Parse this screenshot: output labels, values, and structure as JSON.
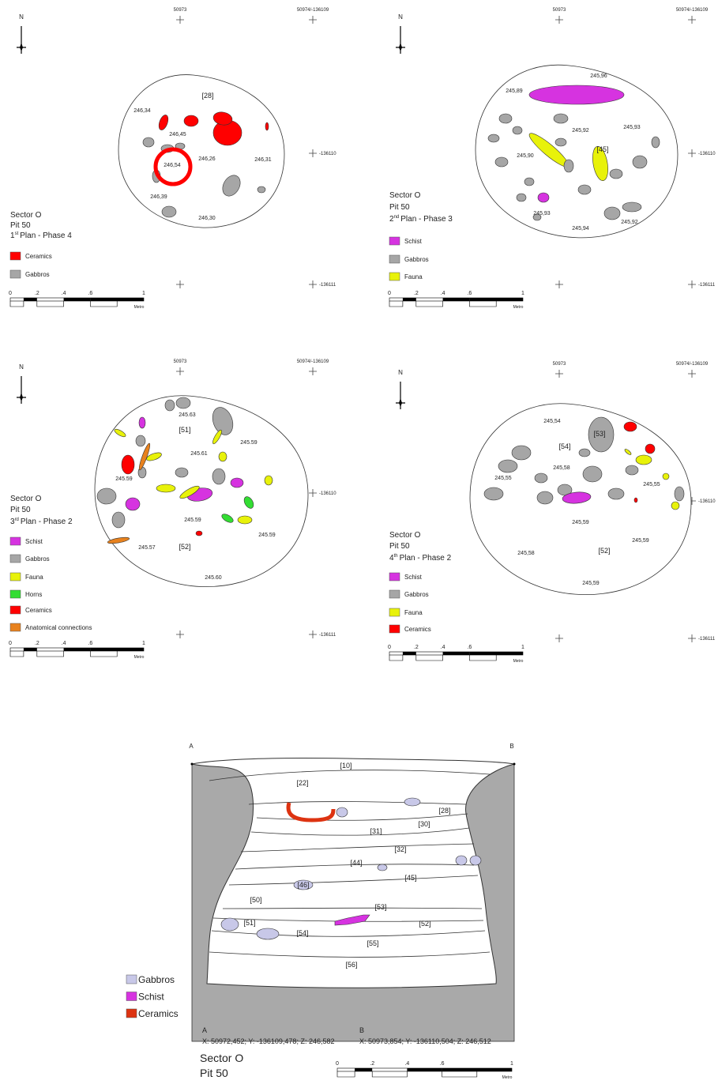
{
  "plans": [
    {
      "north": "N",
      "grid": {
        "e1": "50973",
        "e2": "50974/-136109",
        "n1": "-136110",
        "n2": "-136111"
      },
      "sector": "Sector O",
      "pit": "Pit 50",
      "plan_number": "1",
      "plan_suffix": "st",
      "plan_rest": "Plan - Phase 4",
      "labels": [
        "246,34",
        "246,45",
        "[28]",
        "246,26",
        "246,54",
        "246,31",
        "246,39",
        "246,30"
      ],
      "legend": [
        {
          "label": "Ceramics",
          "color": "#ff0000"
        },
        {
          "label": "Gabbros",
          "color": "#a6a6a6"
        }
      ],
      "scale": {
        "labels": [
          "0",
          ".2",
          ".4",
          ".6",
          "1"
        ],
        "unit": "Metro"
      }
    },
    {
      "north": "N",
      "grid": {
        "e1": "50973",
        "e2": "50974/-136109",
        "n1": "-136110",
        "n2": "-136111"
      },
      "sector": "Sector O",
      "pit": "Pit 50",
      "plan_number": "2",
      "plan_suffix": "nd",
      "plan_rest": "Plan - Phase 3",
      "labels": [
        "245,96",
        "245,89",
        "245,92",
        "245,93",
        "[45]",
        "245,90",
        "245,93",
        "245,94",
        "245,92"
      ],
      "legend": [
        {
          "label": "Schist",
          "color": "#d633e0"
        },
        {
          "label": "Gabbros",
          "color": "#a6a6a6"
        },
        {
          "label": "Fauna",
          "color": "#e8f20a"
        }
      ],
      "scale": {
        "labels": [
          "0",
          ".2",
          ".4",
          ".6",
          "1"
        ],
        "unit": "Metro"
      }
    },
    {
      "north": "N",
      "grid": {
        "e1": "50973",
        "e2": "50974/-136109",
        "n1": "-136110",
        "n2": "-136111"
      },
      "sector": "Sector O",
      "pit": "Pit 50",
      "plan_number": "3",
      "plan_suffix": "rd",
      "plan_rest": "Plan - Phase 2",
      "labels": [
        "245.63",
        "[51]",
        "245.59",
        "245.61",
        "245.59",
        "245.59",
        "245.57",
        "[52]",
        "245.59",
        "245.60"
      ],
      "legend": [
        {
          "label": "Schist",
          "color": "#d633e0"
        },
        {
          "label": "Gabbros",
          "color": "#a6a6a6"
        },
        {
          "label": "Fauna",
          "color": "#e8f20a"
        },
        {
          "label": "Horns",
          "color": "#33dd33"
        },
        {
          "label": "Ceramics",
          "color": "#ff0000"
        },
        {
          "label": "Anatomical connections",
          "color": "#e8821e"
        }
      ],
      "scale": {
        "labels": [
          "0",
          ".2",
          ".4",
          ".6",
          "1"
        ],
        "unit": "Metro"
      }
    },
    {
      "north": "N",
      "grid": {
        "e1": "50973",
        "e2": "50974/-136109",
        "n1": "-136110",
        "n2": "-136111"
      },
      "sector": "Sector O",
      "pit": "Pit 50",
      "plan_number": "4",
      "plan_suffix": "th",
      "plan_rest": "Plan - Phase 2",
      "labels": [
        "245,54",
        "[53]",
        "[54]",
        "245,58",
        "245,55",
        "245,55",
        "245,59",
        "245,59",
        "245,58",
        "[52]",
        "245,59"
      ],
      "legend": [
        {
          "label": "Schist",
          "color": "#d633e0"
        },
        {
          "label": "Gabbros",
          "color": "#a6a6a6"
        },
        {
          "label": "Fauna",
          "color": "#e8f20a"
        },
        {
          "label": "Ceramics",
          "color": "#ff0000"
        }
      ],
      "scale": {
        "labels": [
          "0",
          ".2",
          ".4",
          ".6",
          "1"
        ],
        "unit": "Metro"
      }
    }
  ],
  "section": {
    "a": "A",
    "b": "B",
    "layers": [
      "[10]",
      "[22]",
      "[28]",
      "[30]",
      "[31]",
      "[32]",
      "[44]",
      "[45]",
      "[46]",
      "[50]",
      "[53]",
      "[51]",
      "[52]",
      "[54]",
      "[55]",
      "[56]"
    ],
    "legend": [
      {
        "label": "Gabbros",
        "color": "#c8c8e8"
      },
      {
        "label": "Schist",
        "color": "#d633e0"
      },
      {
        "label": "Ceramics",
        "color": "#dd3311"
      }
    ],
    "point_a": {
      "name": "A",
      "coords": "X: 50972,452; Y: -136109,478; Z: 246,582"
    },
    "point_b": {
      "name": "B",
      "coords": "X: 50973,854; Y: -136110,504; Z: 246,512"
    },
    "sector": "Sector O",
    "pit": "Pit 50",
    "scale": {
      "labels": [
        "0",
        ".2",
        ".4",
        ".6",
        "1"
      ],
      "unit": "Metro"
    }
  }
}
